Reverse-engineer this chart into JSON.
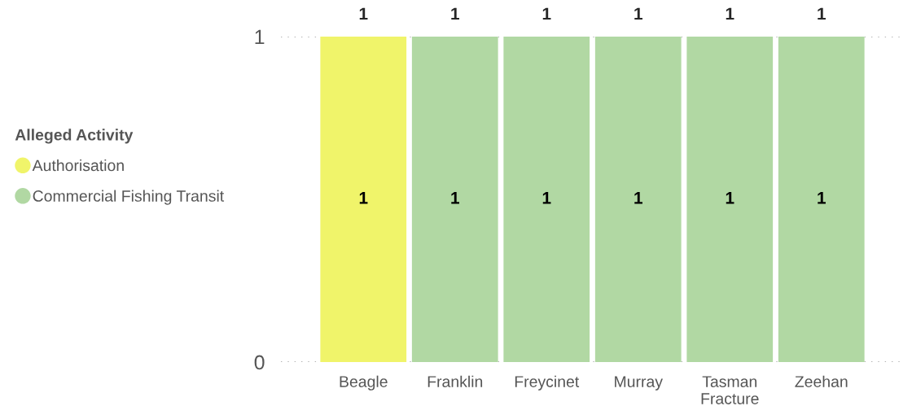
{
  "chart_data": {
    "type": "bar",
    "stacked": true,
    "legend_title": "Alleged Activity",
    "legend": "left",
    "categories": [
      "Beagle",
      "Franklin",
      "Freycinet",
      "Murray",
      "Tasman Fracture",
      "Zeehan"
    ],
    "series": [
      {
        "name": "Authorisation",
        "color": "#f0f46a",
        "values": [
          1,
          null,
          null,
          null,
          null,
          null
        ]
      },
      {
        "name": "Commercial Fishing Transit",
        "color": "#b1d8a3",
        "values": [
          null,
          1,
          1,
          1,
          1,
          1
        ]
      }
    ],
    "ylim": [
      0,
      1
    ],
    "yticks": [
      0,
      1
    ],
    "grid": "y",
    "data_labels": true,
    "totals": [
      "1",
      "1",
      "1",
      "1",
      "1",
      "1"
    ]
  }
}
